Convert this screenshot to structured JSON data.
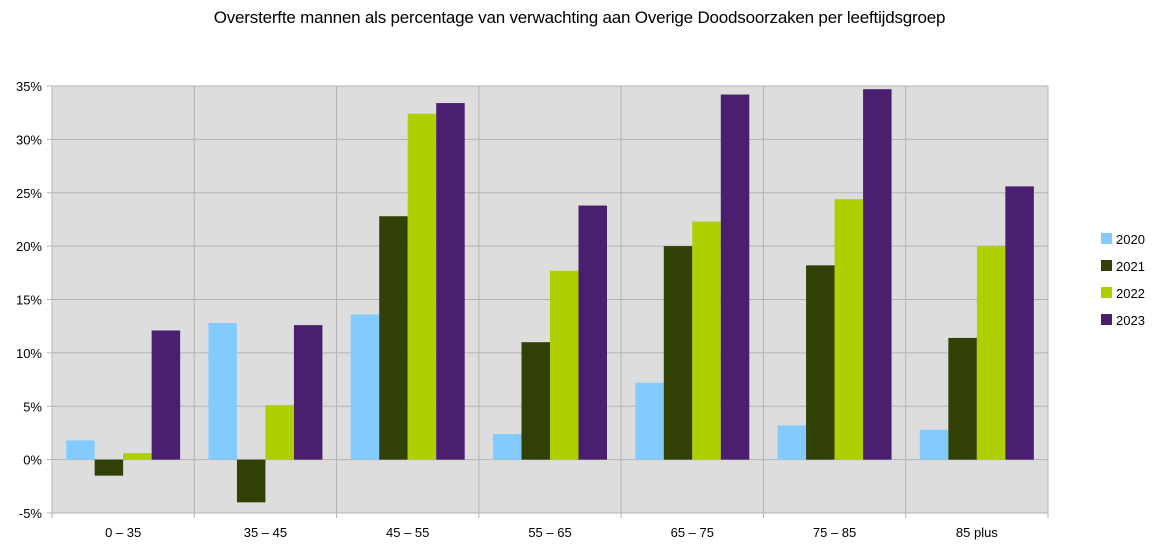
{
  "chart_data": {
    "type": "bar",
    "title": "Oversterfte mannen als percentage van verwachting aan Overige Doodsoorzaken per leeftijdsgroep",
    "categories": [
      "0 – 35",
      "35 – 45",
      "45 – 55",
      "55 – 65",
      "65 – 75",
      "75 – 85",
      "85 plus"
    ],
    "series": [
      {
        "name": "2020",
        "color": "#83caff",
        "values": [
          1.8,
          12.8,
          13.6,
          2.4,
          7.2,
          3.2,
          2.8
        ]
      },
      {
        "name": "2021",
        "color": "#314004",
        "values": [
          -1.5,
          -4.0,
          22.8,
          11.0,
          20.0,
          18.2,
          11.4
        ]
      },
      {
        "name": "2022",
        "color": "#aecf00",
        "values": [
          0.6,
          5.1,
          32.4,
          17.7,
          22.3,
          24.4,
          20.0
        ]
      },
      {
        "name": "2023",
        "color": "#4b1f6f",
        "values": [
          12.1,
          12.6,
          33.4,
          23.8,
          34.2,
          34.7,
          25.6
        ]
      }
    ],
    "ylim": [
      -5,
      35
    ],
    "yticks": [
      -5,
      0,
      5,
      10,
      15,
      20,
      25,
      30,
      35
    ],
    "ytick_labels": [
      "-5%",
      "0%",
      "5%",
      "10%",
      "15%",
      "20%",
      "25%",
      "30%",
      "35%"
    ],
    "xlabel": "",
    "ylabel": "",
    "grid": true,
    "legend_position": "right",
    "plot_background": "#dddddd",
    "grid_color": "#b3b3b3"
  }
}
